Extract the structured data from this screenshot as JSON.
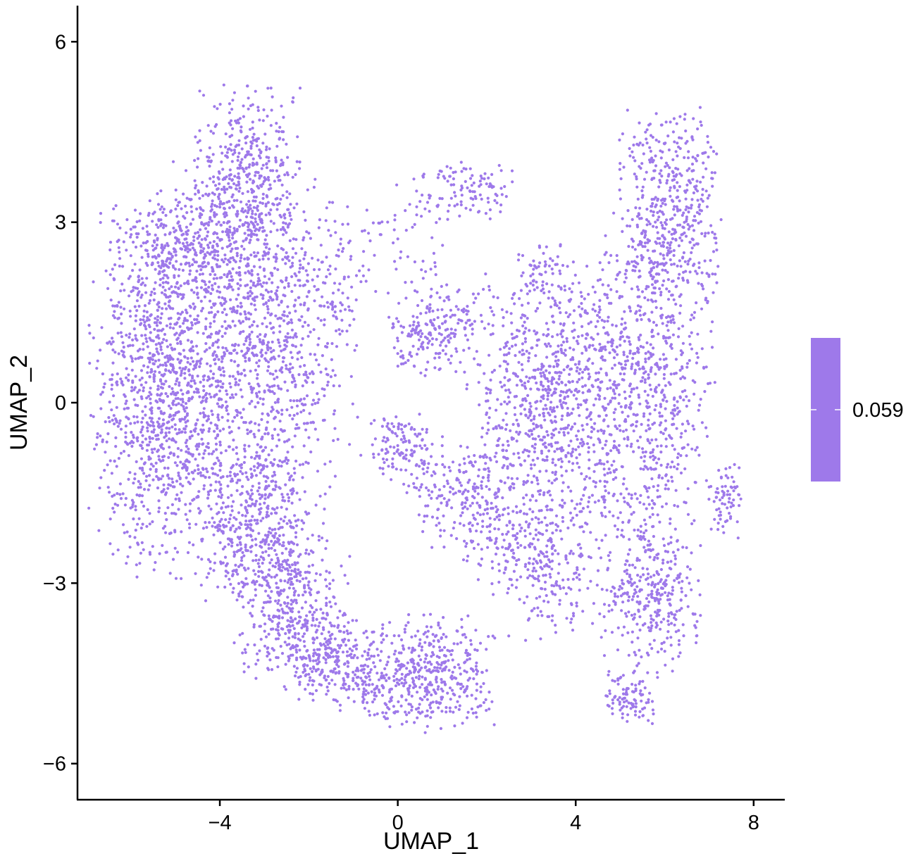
{
  "chart_data": {
    "type": "scatter",
    "xlabel": "UMAP_1",
    "ylabel": "UMAP_2",
    "xlim": [
      -7.2,
      8.7
    ],
    "ylim": [
      -6.6,
      6.6
    ],
    "x_ticks": [
      {
        "value": -4,
        "label": "−4"
      },
      {
        "value": 0,
        "label": "0"
      },
      {
        "value": 4,
        "label": "4"
      },
      {
        "value": 8,
        "label": "8"
      }
    ],
    "y_ticks": [
      {
        "value": 6,
        "label": "6"
      },
      {
        "value": 3,
        "label": "3"
      },
      {
        "value": 0,
        "label": "0"
      },
      {
        "value": -3,
        "label": "−3"
      },
      {
        "value": -6,
        "label": "−6"
      }
    ],
    "grid": false,
    "point_color": "#9e79ea",
    "legend": {
      "position": "right",
      "value_label": "0.059",
      "value": 0.059,
      "color": "#9e79ea"
    },
    "clusters": [
      {
        "cx": -5.3,
        "cy": 0.3,
        "sx": 0.75,
        "sy": 1.5,
        "n": 1100
      },
      {
        "cx": -3.2,
        "cy": 1.0,
        "sx": 1.1,
        "sy": 1.4,
        "n": 1200
      },
      {
        "cx": -3.4,
        "cy": 4.0,
        "sx": 0.55,
        "sy": 0.6,
        "n": 330
      },
      {
        "cx": -4.4,
        "cy": 2.7,
        "sx": 0.9,
        "sy": 0.45,
        "n": 320
      },
      {
        "cx": -1.2,
        "cy": 2.3,
        "sx": 0.4,
        "sy": 0.5,
        "n": 50
      },
      {
        "cx": -3.2,
        "cy": -2.0,
        "sx": 0.6,
        "sy": 0.65,
        "n": 420
      },
      {
        "cx": -2.4,
        "cy": -3.3,
        "sx": 0.6,
        "sy": 0.6,
        "n": 380
      },
      {
        "cx": -1.6,
        "cy": -4.2,
        "sx": 0.6,
        "sy": 0.35,
        "n": 220
      },
      {
        "cx": 0.7,
        "cy": -4.5,
        "sx": 0.7,
        "sy": 0.45,
        "n": 420
      },
      {
        "cx": -0.6,
        "cy": -4.6,
        "sx": 0.5,
        "sy": 0.3,
        "n": 110
      },
      {
        "cx": 0.1,
        "cy": -0.8,
        "sx": 0.35,
        "sy": 0.3,
        "n": 120
      },
      {
        "cx": 1.5,
        "cy": -1.5,
        "sx": 0.6,
        "sy": 0.45,
        "n": 200
      },
      {
        "cx": 0.8,
        "cy": 1.2,
        "sx": 0.5,
        "sy": 0.35,
        "n": 200
      },
      {
        "cx": 1.5,
        "cy": 3.5,
        "sx": 0.55,
        "sy": 0.25,
        "n": 110
      },
      {
        "cx": 0.3,
        "cy": 2.8,
        "sx": 0.4,
        "sy": 0.45,
        "n": 40
      },
      {
        "cx": 3.4,
        "cy": 0.0,
        "sx": 0.9,
        "sy": 1.1,
        "n": 900
      },
      {
        "cx": 5.6,
        "cy": 0.3,
        "sx": 0.7,
        "sy": 1.3,
        "n": 700
      },
      {
        "cx": 6.1,
        "cy": 3.3,
        "sx": 0.55,
        "sy": 0.75,
        "n": 450
      },
      {
        "cx": 3.0,
        "cy": -2.4,
        "sx": 0.8,
        "sy": 0.4,
        "n": 230
      },
      {
        "cx": 3.4,
        "cy": -3.2,
        "sx": 0.5,
        "sy": 0.35,
        "n": 80
      },
      {
        "cx": 5.7,
        "cy": -3.3,
        "sx": 0.55,
        "sy": 0.6,
        "n": 330
      },
      {
        "cx": 5.2,
        "cy": -4.9,
        "sx": 0.3,
        "sy": 0.2,
        "n": 90
      },
      {
        "cx": 7.3,
        "cy": -1.6,
        "sx": 0.2,
        "sy": 0.3,
        "n": 70
      },
      {
        "cx": 3.3,
        "cy": 2.2,
        "sx": 0.3,
        "sy": 0.25,
        "n": 50
      }
    ]
  }
}
